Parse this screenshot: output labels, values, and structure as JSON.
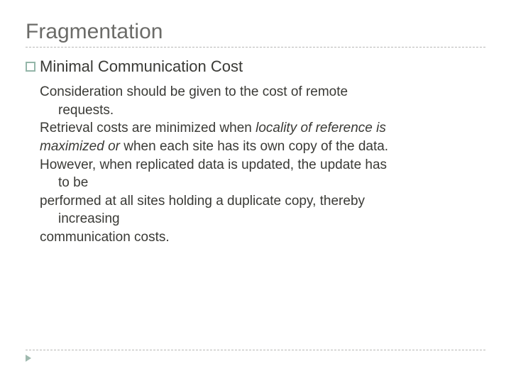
{
  "colors": {
    "title": "#6b6b68",
    "body_text": "#3a3a36",
    "dash_line": "#b8b8b6",
    "bullet_border": "#94b6a9",
    "marker": "#9fb9ae",
    "background": "#ffffff"
  },
  "typography": {
    "title_fontsize": 30,
    "subhead_fontsize": 22,
    "body_fontsize": 19,
    "line_height": 1.35,
    "font_family": "Arial"
  },
  "title": "Fragmentation",
  "subhead": "Minimal Communication Cost",
  "body": {
    "l1": "Consideration should be given to the cost of remote",
    "l1b": "requests.",
    "l2a": "Retrieval costs are minimized when ",
    "l2b": "locality of reference is",
    "l3a": "maximized or ",
    "l3b": "when each site has its own copy of the data.",
    "l4": "However, when replicated data is updated, the update has",
    "l4b": "to be",
    "l5": "performed at all sites holding a duplicate copy, thereby",
    "l5b": "increasing",
    "l6": "communication costs."
  }
}
